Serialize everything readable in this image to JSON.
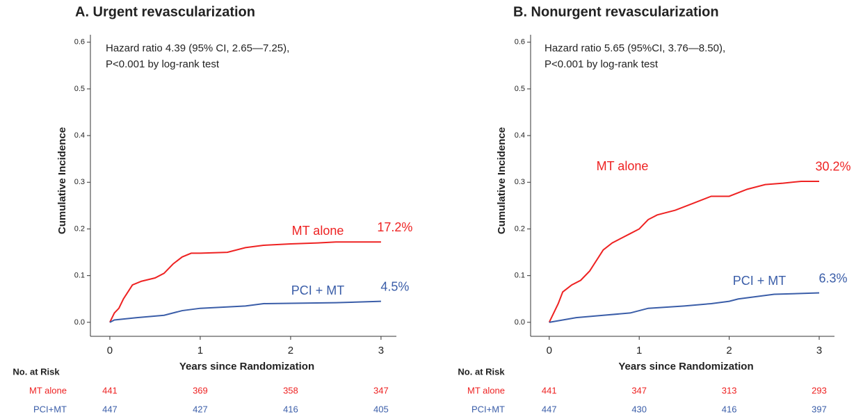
{
  "chart_data": [
    {
      "type": "line",
      "title": "A. Urgent revascularization",
      "annotation": [
        "Hazard ratio 4.39 (95% CI, 2.65—7.25),",
        "P<0.001 by log-rank test"
      ],
      "x_label": "Years since Randomization",
      "y_label": "Cumulative Incidence",
      "xlim": [
        -0.215,
        3.17
      ],
      "ylim": [
        -0.03,
        0.616
      ],
      "xticks": [
        0,
        1,
        2,
        3
      ],
      "yticks": [
        {
          "value": 0,
          "label": "0.0"
        },
        0.1,
        0.2,
        0.3,
        0.4,
        0.5,
        0.6
      ],
      "series": [
        {
          "name": "MT alone",
          "color": "#ee2222",
          "end_label": "17.2%",
          "x": [
            0,
            0.05,
            0.1,
            0.15,
            0.2,
            0.25,
            0.35,
            0.5,
            0.6,
            0.7,
            0.8,
            0.9,
            1.0,
            1.3,
            1.5,
            1.7,
            2.0,
            2.3,
            2.5,
            3.0
          ],
          "values": [
            0,
            0.02,
            0.03,
            0.05,
            0.065,
            0.08,
            0.088,
            0.095,
            0.105,
            0.125,
            0.14,
            0.148,
            0.148,
            0.15,
            0.16,
            0.165,
            0.168,
            0.17,
            0.172,
            0.172
          ]
        },
        {
          "name": "PCI + MT",
          "color": "#3a5da8",
          "end_label": "4.5%",
          "x": [
            0,
            0.05,
            0.3,
            0.6,
            0.8,
            1.0,
            1.5,
            1.7,
            2.5,
            3.0
          ],
          "values": [
            0,
            0.005,
            0.01,
            0.015,
            0.025,
            0.03,
            0.035,
            0.04,
            0.042,
            0.045
          ]
        }
      ],
      "risk_table": {
        "header": "No. at Risk",
        "rows": [
          {
            "label": "MT alone",
            "color": "#ee2222",
            "values": [
              441,
              369,
              358,
              347
            ]
          },
          {
            "label": "PCI+MT",
            "color": "#3a5da8",
            "values": [
              447,
              427,
              416,
              405
            ]
          }
        ]
      }
    },
    {
      "type": "line",
      "title": "B. Nonurgent revascularization",
      "annotation": [
        "Hazard ratio 5.65 (95%CI, 3.76—8.50),",
        "P<0.001 by log-rank test"
      ],
      "x_label": "Years since Randomization",
      "y_label": "Cumulative Incidence",
      "xlim": [
        -0.207,
        3.17
      ],
      "ylim": [
        -0.03,
        0.616
      ],
      "xticks": [
        0,
        1,
        2,
        3
      ],
      "yticks": [
        {
          "value": 0,
          "label": "0.0"
        },
        0.1,
        0.2,
        0.3,
        0.4,
        0.5,
        0.6
      ],
      "series": [
        {
          "name": "MT alone",
          "color": "#ee2222",
          "end_label": "30.2%",
          "x": [
            0,
            0.1,
            0.15,
            0.25,
            0.35,
            0.45,
            0.55,
            0.6,
            0.7,
            0.8,
            0.9,
            1.0,
            1.1,
            1.2,
            1.4,
            1.6,
            1.8,
            2.0,
            2.2,
            2.4,
            2.6,
            2.8,
            3.0
          ],
          "values": [
            0,
            0.04,
            0.065,
            0.08,
            0.09,
            0.11,
            0.14,
            0.155,
            0.17,
            0.18,
            0.19,
            0.2,
            0.22,
            0.23,
            0.24,
            0.255,
            0.27,
            0.27,
            0.285,
            0.295,
            0.298,
            0.302,
            0.302
          ]
        },
        {
          "name": "PCI + MT",
          "color": "#3a5da8",
          "end_label": "6.3%",
          "x": [
            0,
            0.3,
            0.6,
            0.9,
            1.1,
            1.5,
            1.8,
            2.0,
            2.1,
            2.3,
            2.5,
            3.0
          ],
          "values": [
            0,
            0.01,
            0.015,
            0.02,
            0.03,
            0.035,
            0.04,
            0.045,
            0.05,
            0.055,
            0.06,
            0.063
          ]
        }
      ],
      "risk_table": {
        "header": "No. at Risk",
        "rows": [
          {
            "label": "MT alone",
            "color": "#ee2222",
            "values": [
              441,
              347,
              313,
              293
            ]
          },
          {
            "label": "PCI+MT",
            "color": "#3a5da8",
            "values": [
              447,
              430,
              416,
              397
            ]
          }
        ]
      }
    }
  ]
}
